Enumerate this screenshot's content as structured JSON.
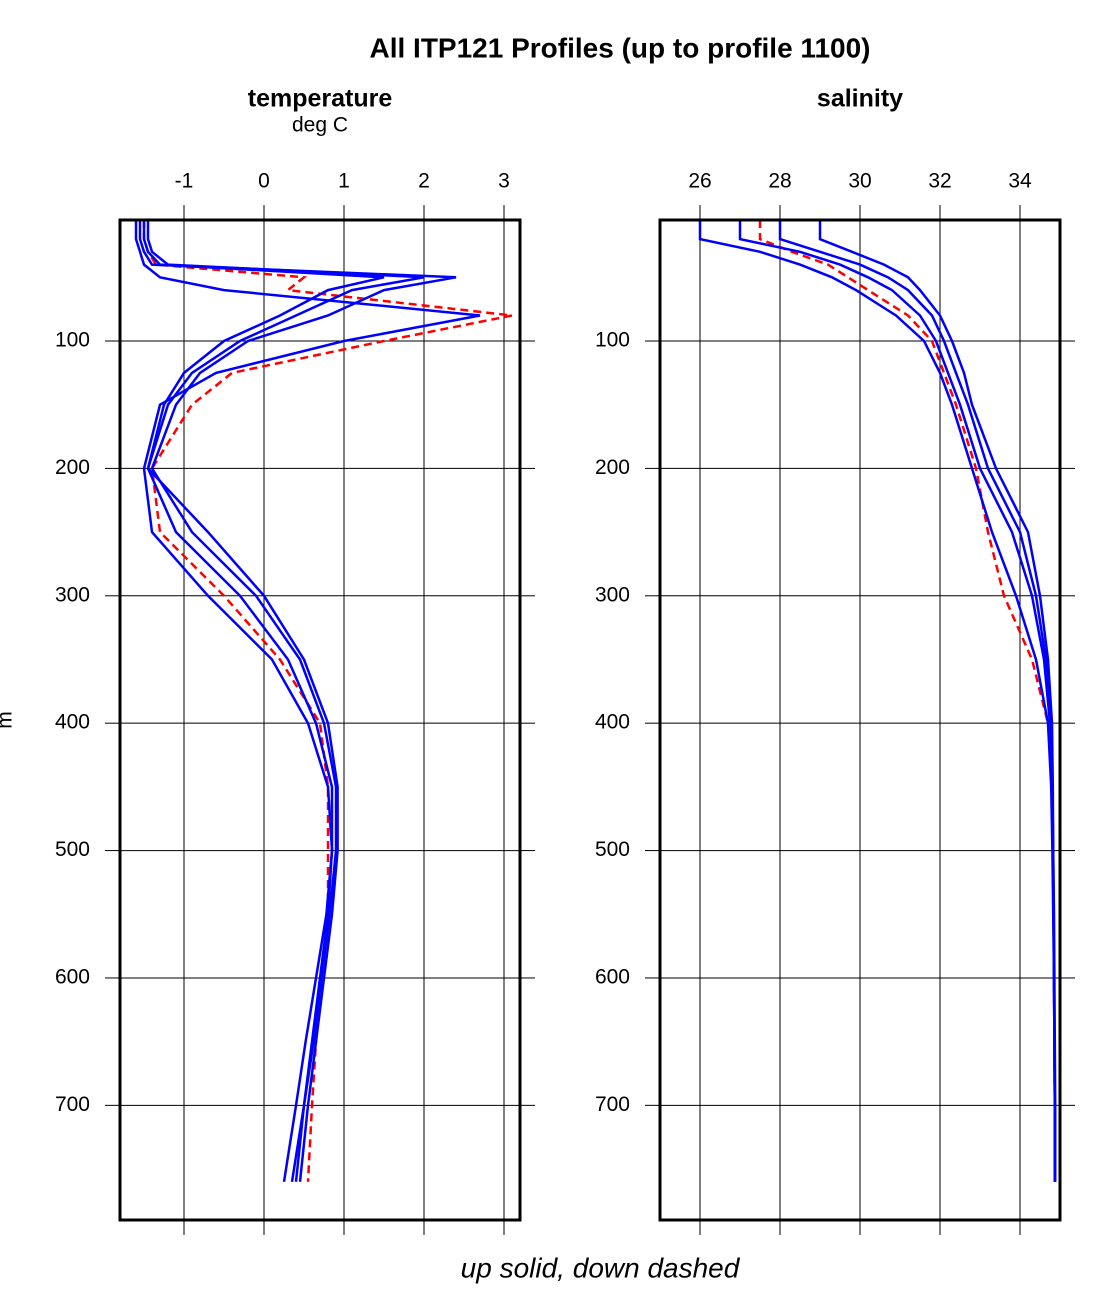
{
  "title": "All ITP121 Profiles (up to profile 1100)",
  "footer": "up solid, down dashed",
  "chart_data": [
    {
      "type": "line",
      "title": "temperature",
      "subtitle": "deg C",
      "ylabel": "m",
      "xlim": [
        -1.8,
        3.2
      ],
      "xticks": [
        -1,
        0,
        1,
        2,
        3
      ],
      "ylim": [
        790,
        5
      ],
      "yticks": [
        100,
        200,
        300,
        400,
        500,
        600,
        700
      ],
      "grid": true,
      "y": [
        5,
        20,
        30,
        40,
        50,
        60,
        80,
        100,
        125,
        150,
        200,
        250,
        300,
        350,
        400,
        450,
        500,
        550,
        600,
        650,
        700,
        760
      ],
      "series": [
        {
          "color": "#ff0000",
          "dash": true,
          "values": [
            -1.5,
            -1.5,
            -1.45,
            -1.35,
            0.5,
            0.3,
            3.1,
            1.5,
            -0.4,
            -0.9,
            -1.4,
            -1.3,
            -0.5,
            0.2,
            0.7,
            0.8,
            0.8,
            0.8,
            0.72,
            0.65,
            0.6,
            0.55
          ]
        },
        {
          "color": "#0000ff",
          "dash": false,
          "values": [
            -1.5,
            -1.5,
            -1.45,
            -1.3,
            1.5,
            0.8,
            0.2,
            -0.5,
            -1.0,
            -1.25,
            -1.45,
            -1.1,
            -0.3,
            0.3,
            0.65,
            0.85,
            0.85,
            0.8,
            0.7,
            0.6,
            0.5,
            0.4
          ]
        },
        {
          "color": "#0000ff",
          "dash": false,
          "values": [
            -1.55,
            -1.55,
            -1.5,
            -1.4,
            2.4,
            1.5,
            0.8,
            -0.2,
            -0.8,
            -1.1,
            -1.4,
            -0.9,
            -0.1,
            0.45,
            0.75,
            0.9,
            0.9,
            0.82,
            0.72,
            0.62,
            0.5,
            0.35
          ]
        },
        {
          "color": "#0000ff",
          "dash": false,
          "values": [
            -1.6,
            -1.6,
            -1.55,
            -1.5,
            -1.3,
            -0.5,
            2.7,
            1.0,
            -0.6,
            -1.3,
            -1.5,
            -1.4,
            -0.7,
            0.1,
            0.55,
            0.8,
            0.85,
            0.78,
            0.65,
            0.52,
            0.4,
            0.25
          ]
        },
        {
          "color": "#0000ff",
          "dash": false,
          "values": [
            -1.45,
            -1.45,
            -1.4,
            -1.2,
            2.0,
            1.1,
            0.4,
            -0.3,
            -0.9,
            -1.2,
            -1.45,
            -0.7,
            0.0,
            0.5,
            0.8,
            0.92,
            0.92,
            0.85,
            0.75,
            0.65,
            0.55,
            0.45
          ]
        }
      ]
    },
    {
      "type": "line",
      "title": "salinity",
      "xlim": [
        25,
        35
      ],
      "xticks": [
        26,
        28,
        30,
        32,
        34
      ],
      "ylim": [
        790,
        5
      ],
      "yticks": [
        100,
        200,
        300,
        400,
        500,
        600,
        700
      ],
      "grid": true,
      "y": [
        5,
        20,
        30,
        40,
        50,
        60,
        80,
        100,
        125,
        150,
        200,
        250,
        300,
        350,
        400,
        450,
        500,
        550,
        600,
        650,
        700,
        760
      ],
      "series": [
        {
          "color": "#ff0000",
          "dash": true,
          "values": [
            27.5,
            27.5,
            28.3,
            29.2,
            29.7,
            30.2,
            31.2,
            31.8,
            32.1,
            32.4,
            32.9,
            33.2,
            33.6,
            34.3,
            34.7,
            34.8,
            34.82,
            34.84,
            34.85,
            34.86,
            34.87,
            34.87
          ]
        },
        {
          "color": "#0000ff",
          "dash": false,
          "values": [
            27.0,
            27.0,
            28.5,
            29.5,
            30.2,
            30.8,
            31.5,
            31.9,
            32.2,
            32.5,
            33.0,
            33.8,
            34.3,
            34.6,
            34.75,
            34.8,
            34.82,
            34.84,
            34.85,
            34.86,
            34.87,
            34.87
          ]
        },
        {
          "color": "#0000ff",
          "dash": false,
          "values": [
            29.0,
            29.0,
            29.8,
            30.6,
            31.2,
            31.5,
            32.0,
            32.3,
            32.6,
            32.8,
            33.4,
            34.2,
            34.5,
            34.7,
            34.8,
            34.82,
            34.83,
            34.85,
            34.86,
            34.87,
            34.88,
            34.88
          ]
        },
        {
          "color": "#0000ff",
          "dash": false,
          "values": [
            26.0,
            26.0,
            27.5,
            28.5,
            29.3,
            29.9,
            30.9,
            31.6,
            32.0,
            32.3,
            32.8,
            33.3,
            33.9,
            34.4,
            34.7,
            34.78,
            34.81,
            34.83,
            34.85,
            34.86,
            34.87,
            34.87
          ]
        },
        {
          "color": "#0000ff",
          "dash": false,
          "values": [
            28.0,
            28.0,
            29.0,
            30.0,
            30.7,
            31.2,
            31.8,
            32.1,
            32.4,
            32.7,
            33.2,
            34.0,
            34.4,
            34.65,
            34.78,
            34.81,
            34.83,
            34.84,
            34.85,
            34.86,
            34.87,
            34.87
          ]
        }
      ]
    }
  ]
}
